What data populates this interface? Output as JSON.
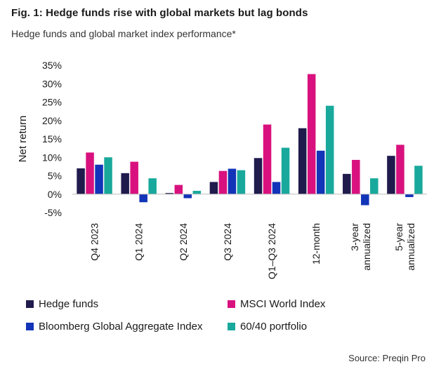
{
  "title": "Fig. 1: Hedge funds rise with global markets but lag bonds",
  "subtitle": "Hedge funds and global market index performance*",
  "source": "Source: Preqin Pro",
  "chart_data": {
    "type": "bar",
    "ylabel": "Net return",
    "ylim": [
      -5,
      35
    ],
    "yticks": [
      -5,
      0,
      5,
      10,
      15,
      20,
      25,
      30,
      35
    ],
    "ytick_labels": [
      "-5%",
      "0%",
      "5%",
      "10%",
      "15%",
      "20%",
      "25%",
      "30%",
      "35%"
    ],
    "categories": [
      [
        "Q4 2023"
      ],
      [
        "Q1 2024"
      ],
      [
        "Q2 2024"
      ],
      [
        "Q3 2024"
      ],
      [
        "Q1–Q3 2024"
      ],
      [
        "12-month"
      ],
      [
        "3-year",
        "annualized"
      ],
      [
        "5-year",
        "annualized"
      ]
    ],
    "series": [
      {
        "name": "Hedge funds",
        "color": "#1f1b4d",
        "values": [
          7.0,
          5.7,
          0.3,
          3.3,
          9.8,
          17.9,
          5.5,
          10.4
        ]
      },
      {
        "name": "MSCI World Index",
        "color": "#d9117e",
        "values": [
          11.3,
          8.8,
          2.5,
          6.3,
          18.9,
          32.6,
          9.3,
          13.4
        ]
      },
      {
        "name": "Bloomberg Global Aggregate Index",
        "color": "#1234b8",
        "values": [
          8.0,
          -2.2,
          -1.1,
          6.9,
          3.3,
          11.8,
          -3.0,
          -0.8
        ]
      },
      {
        "name": "60/40 portfolio",
        "color": "#19a99c",
        "values": [
          10.0,
          4.3,
          0.9,
          6.5,
          12.6,
          24.0,
          4.3,
          7.7
        ]
      }
    ],
    "legend_position": "bottom"
  }
}
